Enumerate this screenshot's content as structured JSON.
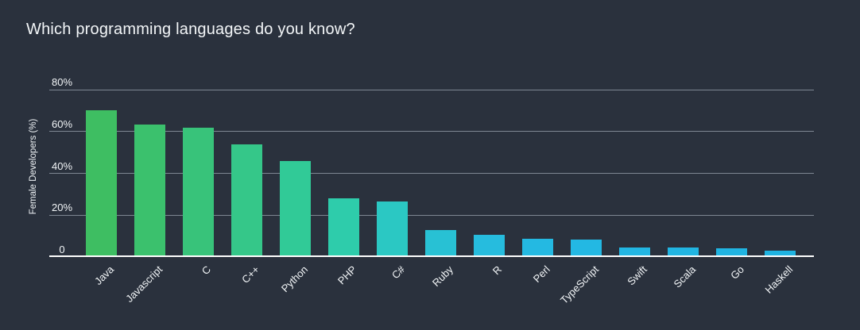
{
  "header": {
    "title": "Which programming languages do you know?"
  },
  "chart_data": {
    "type": "bar",
    "title": "Which programming languages do you know?",
    "xlabel": "",
    "ylabel": "Female Developers (%)",
    "ylim": [
      0,
      80
    ],
    "grid": true,
    "legend": "none",
    "yticks": [
      {
        "value": 80,
        "label": "80%"
      },
      {
        "value": 60,
        "label": "60%"
      },
      {
        "value": 40,
        "label": "40%"
      },
      {
        "value": 20,
        "label": "20%"
      },
      {
        "value": 0,
        "label": "0"
      }
    ],
    "categories": [
      "Java",
      "Javascript",
      "C",
      "C++",
      "Python",
      "PHP",
      "C#",
      "Ruby",
      "R",
      "Perl",
      "TypeScript",
      "Swift",
      "Scala",
      "Go",
      "Haskell"
    ],
    "values": [
      69.5,
      62.7,
      61.2,
      53.0,
      45.0,
      27.4,
      25.9,
      12.2,
      9.9,
      8.0,
      7.6,
      3.9,
      3.8,
      3.4,
      2.3
    ],
    "bar_colors": [
      "#3ebe62",
      "#3bc16d",
      "#38c37a",
      "#35c789",
      "#31ca97",
      "#2eccab",
      "#2bc8c3",
      "#28c1d4",
      "#26bcde",
      "#24b9e2",
      "#23b8e3",
      "#22b6e3",
      "#21b5e2",
      "#20b4e2",
      "#1fb3e1"
    ],
    "colors": {
      "background": "#2a313d",
      "gridline": "#8d97a2",
      "axis_line": "#ffffff",
      "text": "#f2f5f7"
    }
  }
}
